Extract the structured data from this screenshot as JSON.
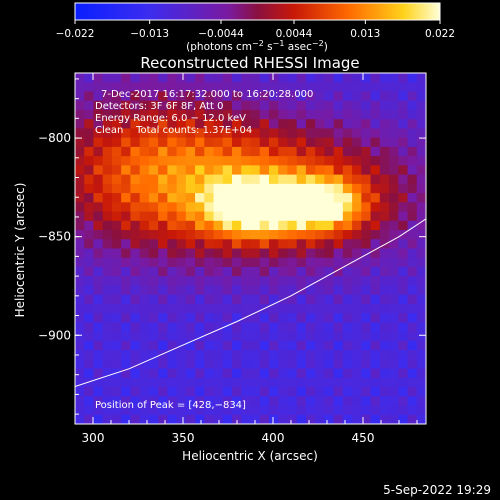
{
  "chart_data": {
    "type": "heatmap",
    "title": "Reconstructed RHESSI Image",
    "xlabel": "Heliocentric X (arcsec)",
    "ylabel": "Heliocentric Y (arcsec)",
    "xlim": [
      290,
      485
    ],
    "ylim": [
      -945,
      -767
    ],
    "x_ticks": [
      300,
      350,
      400,
      450
    ],
    "y_ticks": [
      -800,
      -850,
      -900
    ],
    "colorbar": {
      "ticks": [
        -0.022,
        -0.013,
        -0.0044,
        0.0044,
        0.013,
        0.022
      ],
      "tick_labels": [
        "−0.022",
        "−0.013",
        "−0.0044",
        "0.0044",
        "0.013",
        "0.022"
      ],
      "range": [
        -0.022,
        0.022
      ],
      "units_prefix": "(photons cm",
      "units_exp1": "−2",
      "units_mid": " s",
      "units_exp2": "−1",
      "units_mid2": " asec",
      "units_exp3": "−2",
      "units_suffix": ")"
    },
    "info_lines": [
      "7-Dec-2017 16:17:32.000 to 16:20:28.000",
      "Detectors: 3F 6F 8F, Att 0",
      "Energy Range: 6.0 − 12.0 keV",
      "Clean    Total counts: 1.37E+04"
    ],
    "peak_label": "Position of Peak = [428,−834]",
    "peak": [
      428,
      -834
    ],
    "limb_curve": [
      [
        290,
        -926
      ],
      [
        320,
        -917
      ],
      [
        350,
        -905
      ],
      [
        380,
        -893
      ],
      [
        410,
        -880
      ],
      [
        440,
        -865
      ],
      [
        470,
        -850
      ],
      [
        485,
        -841
      ]
    ],
    "sources": [
      {
        "x": 330,
        "y": -815,
        "amp": 0.017,
        "sx": 45,
        "sy": 30
      },
      {
        "x": 410,
        "y": -828,
        "amp": 0.019,
        "sx": 55,
        "sy": 25
      },
      {
        "x": 390,
        "y": -835,
        "amp": 0.022,
        "sx": 18,
        "sy": 10
      },
      {
        "x": 428,
        "y": -834,
        "amp": 0.021,
        "sx": 15,
        "sy": 9
      }
    ]
  },
  "timestamp": "5-Sep-2022 19:29"
}
